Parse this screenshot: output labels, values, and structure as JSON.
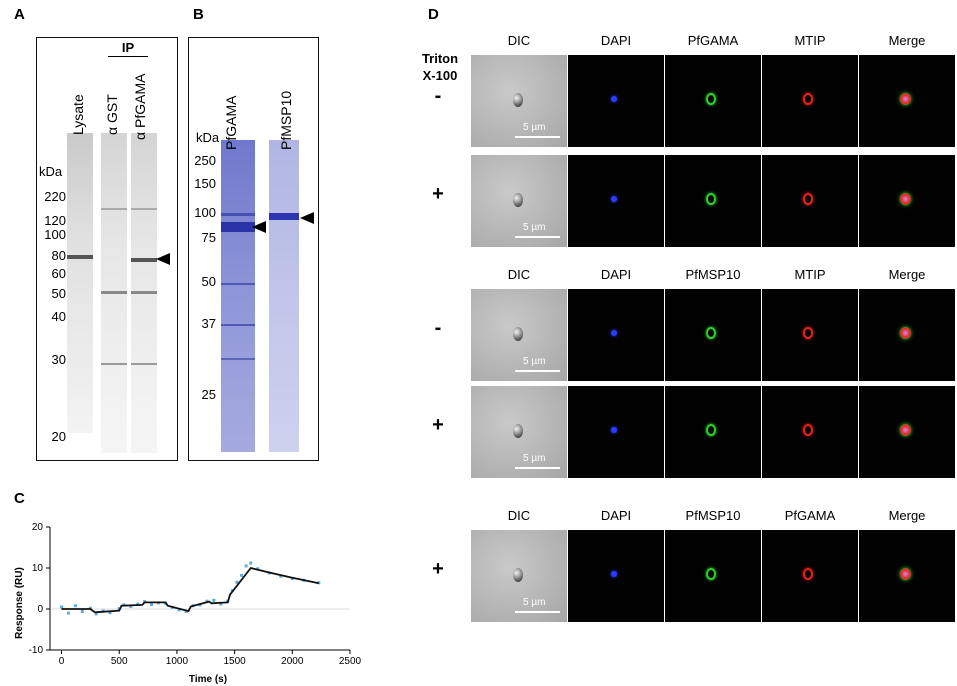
{
  "panels": {
    "a": "A",
    "b": "B",
    "c": "C",
    "d": "D"
  },
  "panel_a": {
    "ip_label": "IP",
    "lanes": [
      "Lysate",
      "α GST",
      "α PfGAMA"
    ],
    "kda": "kDa",
    "markers": [
      "220",
      "120",
      "100",
      "80",
      "60",
      "50",
      "40",
      "30",
      "20"
    ]
  },
  "panel_b": {
    "lanes": [
      "PfGAMA",
      "PfMSP10"
    ],
    "kda": "kDa",
    "markers": [
      "250",
      "150",
      "100",
      "75",
      "50",
      "37",
      "25"
    ]
  },
  "panel_c": {
    "chart_data": {
      "type": "line",
      "xlabel": "Time (s)",
      "ylabel": "Response (RU)",
      "xlim": [
        -100,
        2500
      ],
      "ylim": [
        -10,
        20
      ],
      "xticks": [
        0,
        500,
        1000,
        1500,
        2000,
        2500
      ],
      "yticks": [
        -10,
        0,
        10,
        20
      ],
      "series": [
        {
          "name": "fit",
          "color": "#111111",
          "x": [
            0,
            250,
            290,
            500,
            520,
            700,
            720,
            900,
            920,
            1100,
            1120,
            1280,
            1300,
            1440,
            1460,
            1640,
            1800,
            2000,
            2230
          ],
          "y": [
            0,
            0,
            -0.8,
            -0.4,
            0.8,
            1.0,
            1.6,
            1.6,
            0.8,
            -0.5,
            0.6,
            1.8,
            1.4,
            1.6,
            3.5,
            10.0,
            8.9,
            7.6,
            6.3
          ]
        },
        {
          "name": "measured",
          "color": "#5aaee0",
          "x": [
            0,
            60,
            120,
            180,
            250,
            300,
            360,
            420,
            500,
            540,
            600,
            660,
            720,
            780,
            840,
            900,
            960,
            1020,
            1080,
            1140,
            1200,
            1260,
            1320,
            1380,
            1440,
            1480,
            1520,
            1560,
            1600,
            1640,
            1700,
            1800,
            1900,
            2000,
            2100,
            2230
          ],
          "y": [
            0.5,
            -1.0,
            0.8,
            -0.6,
            0.2,
            -1.2,
            -0.5,
            -0.9,
            0.1,
            1.0,
            0.6,
            1.2,
            1.8,
            1.1,
            1.5,
            1.4,
            0.4,
            -0.2,
            -0.6,
            0.8,
            1.0,
            1.9,
            2.1,
            1.2,
            1.9,
            4.5,
            6.5,
            8.2,
            10.5,
            11.2,
            9.8,
            8.8,
            8.0,
            7.4,
            7.0,
            6.4
          ]
        }
      ]
    }
  },
  "panel_d": {
    "triton_label": "Triton\nX-100",
    "scale_label": "5 µm",
    "colors": {
      "dapi": "#2a3cff",
      "gfp": "#2bd42b",
      "rfp": "#e8221f"
    },
    "groups": [
      {
        "headers": [
          "DIC",
          "DAPI",
          "PfGAMA",
          "MTIP",
          "Merge"
        ],
        "rows": [
          {
            "sign": "-"
          },
          {
            "sign": "+"
          }
        ]
      },
      {
        "headers": [
          "DIC",
          "DAPI",
          "PfMSP10",
          "MTIP",
          "Merge"
        ],
        "rows": [
          {
            "sign": "-"
          },
          {
            "sign": "+"
          }
        ]
      },
      {
        "headers": [
          "DIC",
          "DAPI",
          "PfMSP10",
          "PfGAMA",
          "Merge"
        ],
        "rows": [
          {
            "sign": "+"
          }
        ]
      }
    ]
  }
}
